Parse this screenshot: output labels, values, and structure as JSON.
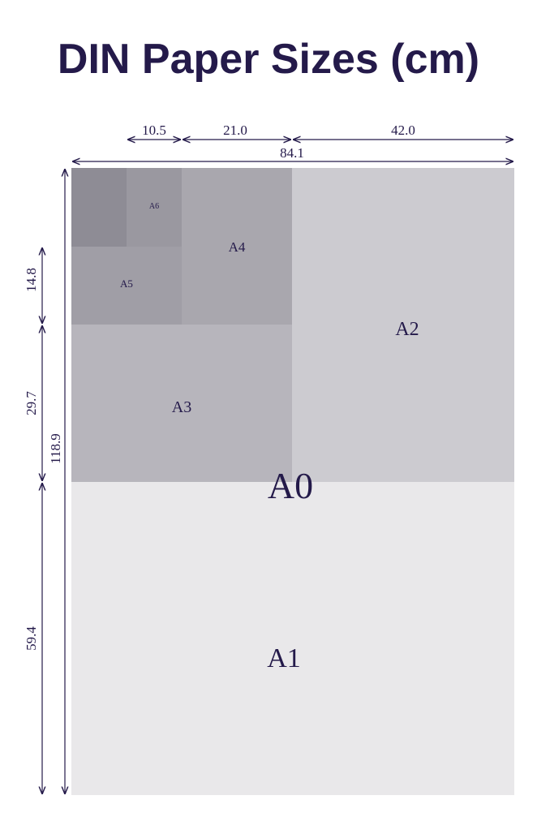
{
  "header": {
    "title": "DIN Paper Sizes (cm)"
  },
  "dimensions": {
    "top": [
      "10.5",
      "21.0",
      "42.0",
      "84.1"
    ],
    "left": [
      "14.8",
      "29.7",
      "59.4",
      "118.9"
    ]
  },
  "sheets": [
    "A0",
    "A1",
    "A2",
    "A3",
    "A4",
    "A5",
    "A6"
  ]
}
